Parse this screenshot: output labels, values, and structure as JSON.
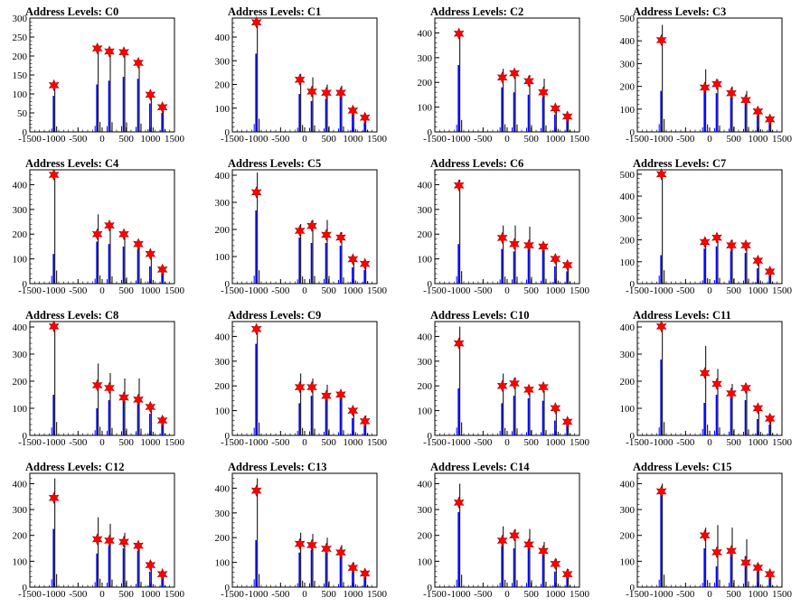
{
  "colors": {
    "blue": "#0000ff",
    "black": "#000000",
    "marker": "#ff0000",
    "frame": "#000000"
  },
  "chart_data": [
    {
      "title": "Address Levels: C0",
      "type": "histogram",
      "xlim": [
        -1500,
        1500
      ],
      "ylim": [
        0,
        300
      ],
      "yticks": [
        0,
        50,
        100,
        150,
        200,
        250,
        300
      ],
      "xticks": [
        -1500,
        -1000,
        -500,
        0,
        500,
        1000,
        1500
      ],
      "peaks": [
        {
          "x": -1000,
          "y": 120,
          "blue": 95
        },
        {
          "x": -100,
          "y": 220,
          "blue": 125
        },
        {
          "x": 150,
          "y": 212,
          "blue": 135
        },
        {
          "x": 450,
          "y": 210,
          "blue": 145
        },
        {
          "x": 750,
          "y": 182,
          "blue": 140
        },
        {
          "x": 1000,
          "y": 98,
          "blue": 75
        },
        {
          "x": 1250,
          "y": 65,
          "blue": 50
        }
      ],
      "markers_y": [
        123,
        220,
        212,
        210,
        182,
        98,
        65
      ]
    },
    {
      "title": "Address Levels: C1",
      "type": "histogram",
      "xlim": [
        -1500,
        1500
      ],
      "ylim": [
        0,
        480
      ],
      "yticks": [
        0,
        100,
        200,
        300,
        400
      ],
      "xticks": [
        -1500,
        -1000,
        -500,
        0,
        500,
        1000,
        1500
      ],
      "peaks": [
        {
          "x": -1000,
          "y": 460,
          "blue": 330
        },
        {
          "x": -100,
          "y": 245,
          "blue": 160
        },
        {
          "x": 150,
          "y": 230,
          "blue": 130
        },
        {
          "x": 450,
          "y": 200,
          "blue": 140
        },
        {
          "x": 750,
          "y": 195,
          "blue": 150
        },
        {
          "x": 1000,
          "y": 105,
          "blue": 80
        },
        {
          "x": 1250,
          "y": 70,
          "blue": 40
        }
      ],
      "markers_y": [
        462,
        220,
        170,
        165,
        165,
        90,
        60
      ]
    },
    {
      "title": "Address Levels: C2",
      "type": "histogram",
      "xlim": [
        -1500,
        1500
      ],
      "ylim": [
        0,
        460
      ],
      "yticks": [
        0,
        100,
        200,
        300,
        400
      ],
      "xticks": [
        -1500,
        -1000,
        -500,
        0,
        500,
        1000,
        1500
      ],
      "peaks": [
        {
          "x": -1000,
          "y": 400,
          "blue": 270
        },
        {
          "x": -100,
          "y": 255,
          "blue": 180
        },
        {
          "x": 150,
          "y": 250,
          "blue": 160
        },
        {
          "x": 450,
          "y": 230,
          "blue": 150
        },
        {
          "x": 750,
          "y": 215,
          "blue": 140
        },
        {
          "x": 1000,
          "y": 105,
          "blue": 70
        },
        {
          "x": 1250,
          "y": 70,
          "blue": 50
        }
      ],
      "markers_y": [
        397,
        220,
        237,
        205,
        160,
        95,
        62
      ]
    },
    {
      "title": "Address Levels: C3",
      "type": "histogram",
      "xlim": [
        -1500,
        1500
      ],
      "ylim": [
        0,
        500
      ],
      "yticks": [
        0,
        100,
        200,
        300,
        400,
        500
      ],
      "xticks": [
        -1500,
        -1000,
        -500,
        0,
        500,
        1000,
        1500
      ],
      "peaks": [
        {
          "x": -1000,
          "y": 470,
          "blue": 180
        },
        {
          "x": -100,
          "y": 275,
          "blue": 180
        },
        {
          "x": 150,
          "y": 230,
          "blue": 170
        },
        {
          "x": 450,
          "y": 200,
          "blue": 150
        },
        {
          "x": 750,
          "y": 180,
          "blue": 140
        },
        {
          "x": 1000,
          "y": 100,
          "blue": 70
        },
        {
          "x": 1250,
          "y": 60,
          "blue": 40
        }
      ],
      "markers_y": [
        403,
        195,
        210,
        170,
        140,
        90,
        55
      ]
    },
    {
      "title": "Address Levels: C4",
      "type": "histogram",
      "xlim": [
        -1500,
        1500
      ],
      "ylim": [
        0,
        460
      ],
      "yticks": [
        0,
        100,
        200,
        300,
        400
      ],
      "xticks": [
        -1500,
        -1000,
        -500,
        0,
        500,
        1000,
        1500
      ],
      "peaks": [
        {
          "x": -1000,
          "y": 440,
          "blue": 120
        },
        {
          "x": -100,
          "y": 280,
          "blue": 170
        },
        {
          "x": 150,
          "y": 245,
          "blue": 160
        },
        {
          "x": 450,
          "y": 210,
          "blue": 150
        },
        {
          "x": 750,
          "y": 175,
          "blue": 140
        },
        {
          "x": 1000,
          "y": 125,
          "blue": 70
        },
        {
          "x": 1250,
          "y": 60,
          "blue": 40
        }
      ],
      "markers_y": [
        440,
        200,
        235,
        200,
        160,
        120,
        57
      ]
    },
    {
      "title": "Address Levels: C5",
      "type": "histogram",
      "xlim": [
        -1500,
        1500
      ],
      "ylim": [
        0,
        420
      ],
      "yticks": [
        0,
        100,
        200,
        300,
        400
      ],
      "xticks": [
        -1500,
        -1000,
        -500,
        0,
        500,
        1000,
        1500
      ],
      "peaks": [
        {
          "x": -1000,
          "y": 410,
          "blue": 270
        },
        {
          "x": -100,
          "y": 220,
          "blue": 170
        },
        {
          "x": 150,
          "y": 235,
          "blue": 150
        },
        {
          "x": 450,
          "y": 235,
          "blue": 150
        },
        {
          "x": 750,
          "y": 190,
          "blue": 140
        },
        {
          "x": 1000,
          "y": 100,
          "blue": 60
        },
        {
          "x": 1250,
          "y": 80,
          "blue": 50
        }
      ],
      "markers_y": [
        337,
        195,
        213,
        180,
        170,
        90,
        73
      ]
    },
    {
      "title": "Address Levels: C6",
      "type": "histogram",
      "xlim": [
        -1500,
        1500
      ],
      "ylim": [
        0,
        460
      ],
      "yticks": [
        0,
        100,
        200,
        300,
        400
      ],
      "xticks": [
        -1500,
        -1000,
        -500,
        0,
        500,
        1000,
        1500
      ],
      "peaks": [
        {
          "x": -1000,
          "y": 420,
          "blue": 160
        },
        {
          "x": -100,
          "y": 235,
          "blue": 140
        },
        {
          "x": 150,
          "y": 235,
          "blue": 130
        },
        {
          "x": 450,
          "y": 230,
          "blue": 150
        },
        {
          "x": 750,
          "y": 165,
          "blue": 140
        },
        {
          "x": 1000,
          "y": 105,
          "blue": 70
        },
        {
          "x": 1250,
          "y": 80,
          "blue": 50
        }
      ],
      "markers_y": [
        397,
        185,
        160,
        155,
        150,
        100,
        75
      ]
    },
    {
      "title": "Address Levels: C7",
      "type": "histogram",
      "xlim": [
        -1500,
        1500
      ],
      "ylim": [
        0,
        520
      ],
      "yticks": [
        0,
        100,
        200,
        300,
        400,
        500
      ],
      "xticks": [
        -1500,
        -1000,
        -500,
        0,
        500,
        1000,
        1500
      ],
      "peaks": [
        {
          "x": -1000,
          "y": 510,
          "blue": 130
        },
        {
          "x": -100,
          "y": 210,
          "blue": 160
        },
        {
          "x": 150,
          "y": 220,
          "blue": 170
        },
        {
          "x": 450,
          "y": 200,
          "blue": 150
        },
        {
          "x": 750,
          "y": 190,
          "blue": 140
        },
        {
          "x": 1000,
          "y": 120,
          "blue": 70
        },
        {
          "x": 1250,
          "y": 70,
          "blue": 40
        }
      ],
      "markers_y": [
        500,
        190,
        210,
        175,
        175,
        105,
        55
      ]
    },
    {
      "title": "Address Levels: C8",
      "type": "histogram",
      "xlim": [
        -1500,
        1500
      ],
      "ylim": [
        0,
        420
      ],
      "yticks": [
        0,
        100,
        200,
        300,
        400
      ],
      "xticks": [
        -1500,
        -1000,
        -500,
        0,
        500,
        1000,
        1500
      ],
      "peaks": [
        {
          "x": -1000,
          "y": 410,
          "blue": 150
        },
        {
          "x": -100,
          "y": 265,
          "blue": 100
        },
        {
          "x": 150,
          "y": 230,
          "blue": 130
        },
        {
          "x": 450,
          "y": 210,
          "blue": 140
        },
        {
          "x": 750,
          "y": 210,
          "blue": 130
        },
        {
          "x": 1000,
          "y": 115,
          "blue": 80
        },
        {
          "x": 1250,
          "y": 70,
          "blue": 40
        }
      ],
      "markers_y": [
        402,
        185,
        175,
        140,
        132,
        105,
        55
      ]
    },
    {
      "title": "Address Levels: C9",
      "type": "histogram",
      "xlim": [
        -1500,
        1500
      ],
      "ylim": [
        0,
        460
      ],
      "yticks": [
        0,
        100,
        200,
        300,
        400
      ],
      "xticks": [
        -1500,
        -1000,
        -500,
        0,
        500,
        1000,
        1500
      ],
      "peaks": [
        {
          "x": -1000,
          "y": 430,
          "blue": 370
        },
        {
          "x": -100,
          "y": 250,
          "blue": 130
        },
        {
          "x": 150,
          "y": 230,
          "blue": 160
        },
        {
          "x": 450,
          "y": 205,
          "blue": 150
        },
        {
          "x": 750,
          "y": 175,
          "blue": 150
        },
        {
          "x": 1000,
          "y": 110,
          "blue": 70
        },
        {
          "x": 1250,
          "y": 80,
          "blue": 40
        }
      ],
      "markers_y": [
        430,
        195,
        195,
        160,
        165,
        100,
        57
      ]
    },
    {
      "title": "Address Levels: C10",
      "type": "histogram",
      "xlim": [
        -1500,
        1500
      ],
      "ylim": [
        0,
        460
      ],
      "yticks": [
        0,
        100,
        200,
        300,
        400
      ],
      "xticks": [
        -1500,
        -1000,
        -500,
        0,
        500,
        1000,
        1500
      ],
      "peaks": [
        {
          "x": -1000,
          "y": 440,
          "blue": 190
        },
        {
          "x": -100,
          "y": 250,
          "blue": 130
        },
        {
          "x": 150,
          "y": 235,
          "blue": 160
        },
        {
          "x": 450,
          "y": 185,
          "blue": 150
        },
        {
          "x": 750,
          "y": 180,
          "blue": 140
        },
        {
          "x": 1000,
          "y": 120,
          "blue": 60
        },
        {
          "x": 1250,
          "y": 70,
          "blue": 40
        }
      ],
      "markers_y": [
        372,
        200,
        210,
        185,
        195,
        110,
        55
      ]
    },
    {
      "title": "Address Levels: C11",
      "type": "histogram",
      "xlim": [
        -1500,
        1500
      ],
      "ylim": [
        0,
        420
      ],
      "yticks": [
        0,
        100,
        200,
        300,
        400
      ],
      "xticks": [
        -1500,
        -1000,
        -500,
        0,
        500,
        1000,
        1500
      ],
      "peaks": [
        {
          "x": -1000,
          "y": 410,
          "blue": 280
        },
        {
          "x": -100,
          "y": 330,
          "blue": 120
        },
        {
          "x": 150,
          "y": 245,
          "blue": 150
        },
        {
          "x": 450,
          "y": 190,
          "blue": 150
        },
        {
          "x": 750,
          "y": 185,
          "blue": 130
        },
        {
          "x": 1000,
          "y": 110,
          "blue": 60
        },
        {
          "x": 1250,
          "y": 75,
          "blue": 40
        }
      ],
      "markers_y": [
        402,
        230,
        190,
        155,
        175,
        100,
        62
      ]
    },
    {
      "title": "Address Levels: C12",
      "type": "histogram",
      "xlim": [
        -1500,
        1500
      ],
      "ylim": [
        0,
        440
      ],
      "yticks": [
        0,
        100,
        200,
        300,
        400
      ],
      "xticks": [
        -1500,
        -1000,
        -500,
        0,
        500,
        1000,
        1500
      ],
      "peaks": [
        {
          "x": -1000,
          "y": 420,
          "blue": 225
        },
        {
          "x": -100,
          "y": 270,
          "blue": 130
        },
        {
          "x": 150,
          "y": 245,
          "blue": 160
        },
        {
          "x": 450,
          "y": 210,
          "blue": 150
        },
        {
          "x": 750,
          "y": 170,
          "blue": 140
        },
        {
          "x": 1000,
          "y": 100,
          "blue": 60
        },
        {
          "x": 1250,
          "y": 60,
          "blue": 40
        }
      ],
      "markers_y": [
        345,
        185,
        180,
        175,
        160,
        85,
        50
      ]
    },
    {
      "title": "Address Levels: C13",
      "type": "histogram",
      "xlim": [
        -1500,
        1500
      ],
      "ylim": [
        0,
        460
      ],
      "yticks": [
        0,
        100,
        200,
        300,
        400
      ],
      "xticks": [
        -1500,
        -1000,
        -500,
        0,
        500,
        1000,
        1500
      ],
      "peaks": [
        {
          "x": -1000,
          "y": 440,
          "blue": 190
        },
        {
          "x": -100,
          "y": 220,
          "blue": 140
        },
        {
          "x": 150,
          "y": 215,
          "blue": 150
        },
        {
          "x": 450,
          "y": 200,
          "blue": 150
        },
        {
          "x": 750,
          "y": 170,
          "blue": 140
        },
        {
          "x": 1000,
          "y": 100,
          "blue": 60
        },
        {
          "x": 1250,
          "y": 70,
          "blue": 40
        }
      ],
      "markers_y": [
        390,
        175,
        170,
        155,
        140,
        78,
        55
      ]
    },
    {
      "title": "Address Levels: C14",
      "type": "histogram",
      "xlim": [
        -1500,
        1500
      ],
      "ylim": [
        0,
        440
      ],
      "yticks": [
        0,
        100,
        200,
        300,
        400
      ],
      "xticks": [
        -1500,
        -1000,
        -500,
        0,
        500,
        1000,
        1500
      ],
      "peaks": [
        {
          "x": -1000,
          "y": 400,
          "blue": 290
        },
        {
          "x": -100,
          "y": 235,
          "blue": 160
        },
        {
          "x": 150,
          "y": 225,
          "blue": 150
        },
        {
          "x": 450,
          "y": 225,
          "blue": 150
        },
        {
          "x": 750,
          "y": 175,
          "blue": 140
        },
        {
          "x": 1000,
          "y": 110,
          "blue": 60
        },
        {
          "x": 1250,
          "y": 70,
          "blue": 40
        }
      ],
      "markers_y": [
        327,
        180,
        200,
        165,
        140,
        90,
        50
      ]
    },
    {
      "title": "Address Levels: C15",
      "type": "histogram",
      "xlim": [
        -1500,
        1500
      ],
      "ylim": [
        0,
        440
      ],
      "yticks": [
        0,
        100,
        200,
        300,
        400
      ],
      "xticks": [
        -1500,
        -1000,
        -500,
        0,
        500,
        1000,
        1500
      ],
      "peaks": [
        {
          "x": -1000,
          "y": 400,
          "blue": 380
        },
        {
          "x": -100,
          "y": 230,
          "blue": 150
        },
        {
          "x": 150,
          "y": 240,
          "blue": 80
        },
        {
          "x": 450,
          "y": 230,
          "blue": 140
        },
        {
          "x": 750,
          "y": 185,
          "blue": 120
        },
        {
          "x": 1000,
          "y": 90,
          "blue": 60
        },
        {
          "x": 1250,
          "y": 60,
          "blue": 40
        }
      ],
      "markers_y": [
        370,
        200,
        135,
        140,
        95,
        75,
        50
      ]
    }
  ]
}
